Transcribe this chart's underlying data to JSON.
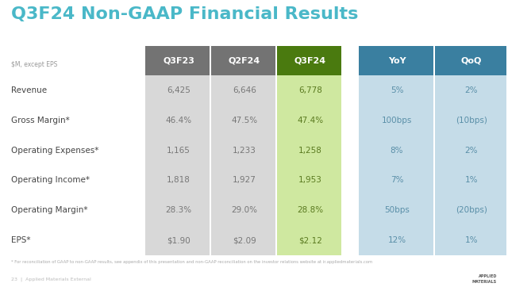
{
  "title": "Q3F24 Non-GAAP Financial Results",
  "subtitle": "$M, except EPS",
  "footnote": "* For reconciliation of GAAP to non-GAAP results, see appendix of this presentation and non-GAAP reconciliation on the investor relations website at ir.appliedmaterials.com",
  "footer_left": "23  |  Applied Materials External",
  "col_headers": [
    "Q3F23",
    "Q2F24",
    "Q3F24",
    "YoY",
    "QoQ"
  ],
  "rows": [
    {
      "label": "Revenue",
      "vals": [
        "6,425",
        "6,646",
        "6,778",
        "5%",
        "2%"
      ]
    },
    {
      "label": "Gross Margin*",
      "vals": [
        "46.4%",
        "47.5%",
        "47.4%",
        "100bps",
        "(10bps)"
      ]
    },
    {
      "label": "Operating Expenses*",
      "vals": [
        "1,165",
        "1,233",
        "1,258",
        "8%",
        "2%"
      ]
    },
    {
      "label": "Operating Income*",
      "vals": [
        "1,818",
        "1,927",
        "1,953",
        "7%",
        "1%"
      ]
    },
    {
      "label": "Operating Margin*",
      "vals": [
        "28.3%",
        "29.0%",
        "28.8%",
        "50bps",
        "(20bps)"
      ]
    },
    {
      "label": "EPS*",
      "vals": [
        "$1.90",
        "$2.09",
        "$2.12",
        "12%",
        "1%"
      ]
    }
  ],
  "title_color": "#4ab8c8",
  "header_gray": "#737373",
  "header_green": "#4a7a0f",
  "header_blue": "#3a7fa0",
  "bg_light_gray": "#d8d8d8",
  "bg_light_green": "#cfe8a0",
  "bg_light_blue": "#c5dce8",
  "text_gray": "#777777",
  "text_green": "#5a7a20",
  "text_blue": "#5a8fa8",
  "text_label": "#444444",
  "white": "#ffffff"
}
